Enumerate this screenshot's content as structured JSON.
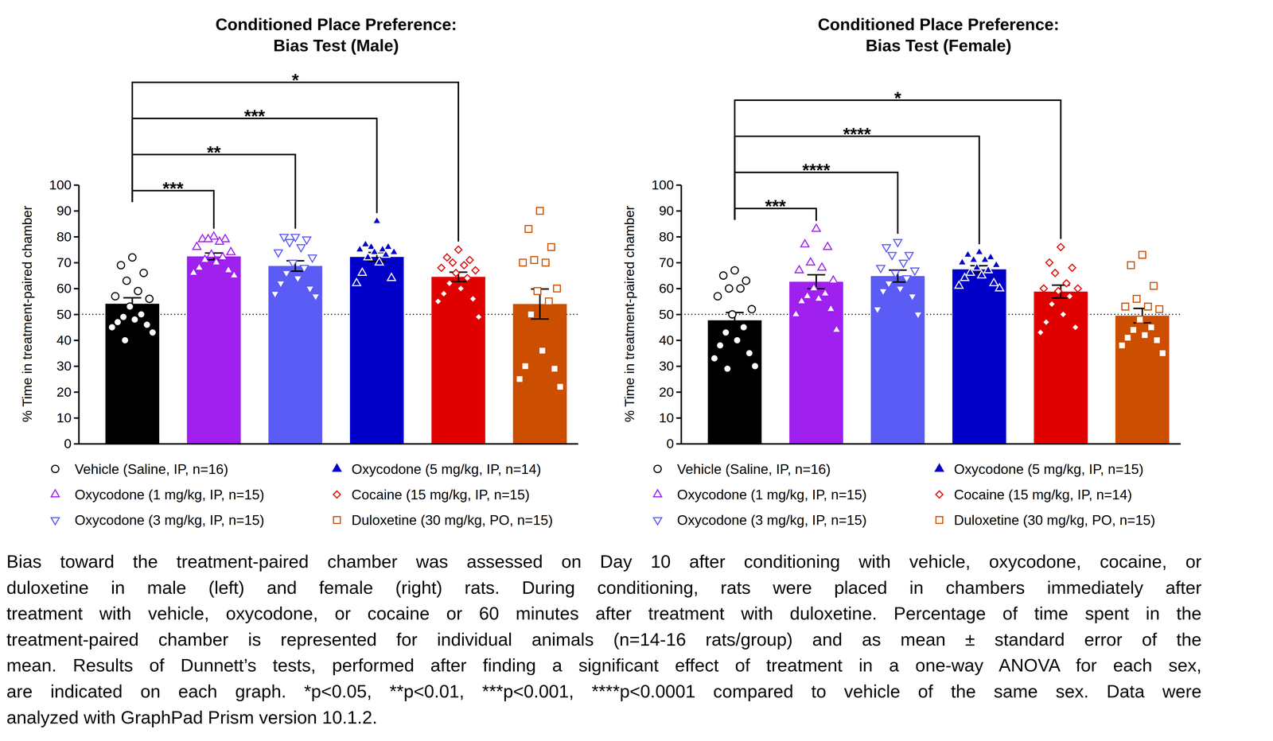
{
  "chart_data": [
    {
      "type": "bar",
      "title": "Conditioned Place Preference:\nBias Test (Male)",
      "ylabel": "% Time in treatment-paired chamber",
      "categories": [
        null
      ],
      "ylim": [
        0,
        100
      ],
      "yticks": [
        0,
        10,
        20,
        30,
        40,
        50,
        60,
        70,
        80,
        90,
        100
      ],
      "grid": false,
      "legend": "bottom",
      "tick_labels": "y",
      "hline": 50,
      "series": [
        {
          "name": "Vehicle (Saline, IP, n=16)",
          "color": "#000000",
          "marker": "circle",
          "values": [
            54.1
          ],
          "errors": [
            2.3
          ],
          "points": [
            [
              72,
              69,
              66,
              63,
              59,
              57,
              56,
              53,
              50,
              49,
              48,
              47,
              46,
              45,
              43,
              40
            ]
          ]
        },
        {
          "name": "Oxycodone (1 mg/kg, IP, n=15)",
          "color": "#a020f0",
          "marker": "triangle-up",
          "values": [
            72.4
          ],
          "errors": [
            1.3
          ],
          "points": [
            [
              80,
              79,
              79,
              79,
              78,
              76,
              74,
              73,
              72,
              71,
              70,
              68,
              67,
              66,
              65
            ]
          ]
        },
        {
          "name": "Oxycodone (3 mg/kg, IP, n=15)",
          "color": "#5b5bf5",
          "marker": "triangle-down",
          "values": [
            68.7
          ],
          "errors": [
            2.0
          ],
          "points": [
            [
              80,
              80,
              79,
              78,
              76,
              74,
              72,
              70,
              68,
              66,
              64,
              62,
              60,
              58,
              57
            ]
          ]
        },
        {
          "name": "Oxycodone (5 mg/kg, IP, n=14)",
          "color": "#0000c8",
          "marker": "filled-triangle-up",
          "values": [
            72.2
          ],
          "errors": [
            1.7
          ],
          "points": [
            [
              86,
              77,
              76,
              76,
              75,
              75,
              74,
              74,
              73,
              72,
              70,
              66,
              64,
              62
            ]
          ]
        },
        {
          "name": "Cocaine (15 mg/kg, IP, n=15)",
          "color": "#e00000",
          "marker": "diamond",
          "values": [
            64.5
          ],
          "errors": [
            1.8
          ],
          "points": [
            [
              75,
              72,
              71,
              70,
              69,
              68,
              67,
              66,
              64,
              62,
              60,
              58,
              56,
              55,
              49
            ]
          ]
        },
        {
          "name": "Duloxetine (30 mg/kg, PO, n=15)",
          "color": "#cc4e00",
          "marker": "square",
          "values": [
            54.0
          ],
          "errors": [
            5.8
          ],
          "points": [
            [
              90,
              83,
              76,
              71,
              70,
              70,
              60,
              59,
              55,
              50,
              36,
              30,
              29,
              25,
              22
            ]
          ]
        }
      ],
      "comparisons": [
        {
          "from": 0,
          "to": 1,
          "label": "***"
        },
        {
          "from": 0,
          "to": 2,
          "label": "**"
        },
        {
          "from": 0,
          "to": 3,
          "label": "***"
        },
        {
          "from": 0,
          "to": 4,
          "label": "*"
        }
      ]
    },
    {
      "type": "bar",
      "title": "Conditioned Place Preference:\nBias Test (Female)",
      "ylabel": "% Time in treatment-paired chamber",
      "categories": [
        null
      ],
      "ylim": [
        0,
        100
      ],
      "yticks": [
        0,
        10,
        20,
        30,
        40,
        50,
        60,
        70,
        80,
        90,
        100
      ],
      "grid": false,
      "legend": "bottom",
      "tick_labels": "y",
      "hline": 50,
      "series": [
        {
          "name": "Vehicle (Saline, IP, n=16)",
          "color": "#000000",
          "marker": "circle",
          "values": [
            47.7
          ],
          "errors": [
            3.0
          ],
          "points": [
            [
              67,
              65,
              63,
              60,
              60,
              57,
              52,
              50,
              45,
              43,
              40,
              38,
              35,
              33,
              30,
              29
            ]
          ]
        },
        {
          "name": "Oxycodone (1 mg/kg, IP, n=15)",
          "color": "#a020f0",
          "marker": "triangle-up",
          "values": [
            62.6
          ],
          "errors": [
            2.7
          ],
          "points": [
            [
              83,
              77,
              76,
              70,
              68,
              67,
              63,
              60,
              58,
              57,
              56,
              55,
              52,
              50,
              44
            ]
          ]
        },
        {
          "name": "Oxycodone (3 mg/kg, IP, n=15)",
          "color": "#5b5bf5",
          "marker": "triangle-down",
          "values": [
            64.8
          ],
          "errors": [
            2.3
          ],
          "points": [
            [
              78,
              76,
              73,
              73,
              70,
              68,
              67,
              66,
              64,
              62,
              60,
              59,
              57,
              52,
              50
            ]
          ]
        },
        {
          "name": "Oxycodone (5 mg/kg, IP, n=15)",
          "color": "#0000c8",
          "marker": "filled-triangle-up",
          "values": [
            67.4
          ],
          "errors": [
            1.4
          ],
          "points": [
            [
              74,
              73,
              72,
              71,
              71,
              70,
              69,
              68,
              67,
              66,
              65,
              64,
              62,
              61,
              60
            ]
          ]
        },
        {
          "name": "Cocaine (15 mg/kg, IP, n=14)",
          "color": "#e00000",
          "marker": "diamond",
          "values": [
            58.8
          ],
          "errors": [
            2.5
          ],
          "points": [
            [
              76,
              70,
              68,
              66,
              62,
              60,
              60,
              59,
              57,
              54,
              50,
              47,
              45,
              43
            ]
          ]
        },
        {
          "name": "Duloxetine (30 mg/kg, PO, n=15)",
          "color": "#cc4e00",
          "marker": "square",
          "values": [
            49.5
          ],
          "errors": [
            2.8
          ],
          "points": [
            [
              73,
              69,
              61,
              56,
              53,
              53,
              52,
              48,
              45,
              44,
              42,
              41,
              40,
              38,
              35
            ]
          ]
        }
      ],
      "comparisons": [
        {
          "from": 0,
          "to": 1,
          "label": "***"
        },
        {
          "from": 0,
          "to": 2,
          "label": "****"
        },
        {
          "from": 0,
          "to": 3,
          "label": "****"
        },
        {
          "from": 0,
          "to": 4,
          "label": "*"
        }
      ]
    }
  ],
  "caption": [
    "Bias toward the treatment-paired chamber was assessed on Day 10 after conditioning with vehicle, oxycodone, cocaine, or",
    "duloxetine in male (left) and female (right) rats. During conditioning, rats were placed in chambers immediately after",
    "treatment with vehicle, oxycodone, or cocaine or 60 minutes after treatment with duloxetine. Percentage of time spent in the",
    "treatment-paired chamber is represented for individual animals (n=14-16 rats/group) and as mean ± standard error of the",
    "mean. Results of Dunnett’s tests, performed after finding a significant effect of treatment in a one-way ANOVA for each sex,",
    "are indicated on each graph. *p<0.05, **p<0.01, ***p<0.001, ****p<0.0001 compared to vehicle of the same sex. Data were",
    "analyzed with GraphPad Prism version 10.1.2."
  ]
}
